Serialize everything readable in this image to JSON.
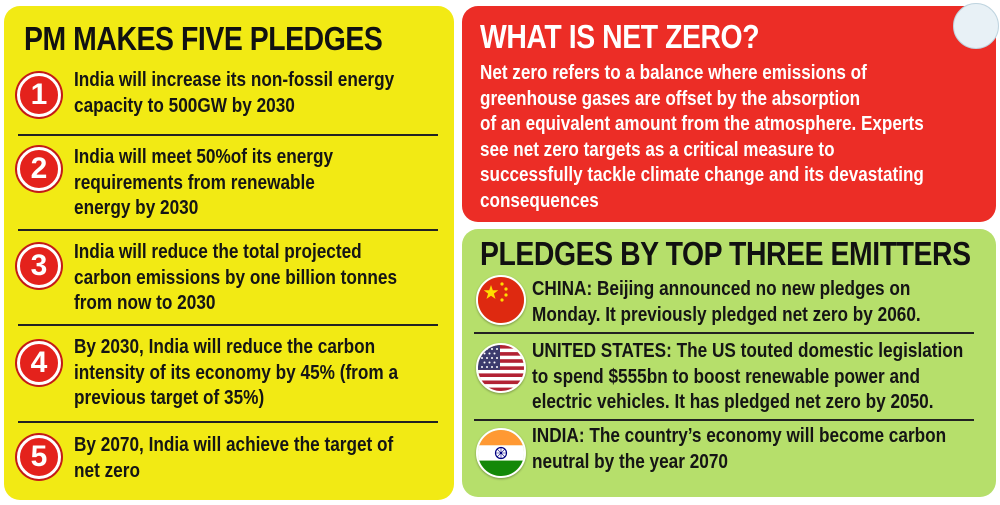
{
  "pledges": {
    "title": "PM MAKES FIVE PLEDGES",
    "items": [
      {
        "num": "1",
        "lines": [
          "India will increase its non-fossil energy",
          "capacity to 500GW by 2030"
        ]
      },
      {
        "num": "2",
        "lines": [
          "India will meet 50%of its energy",
          "requirements from renewable",
          "energy by 2030"
        ]
      },
      {
        "num": "3",
        "lines": [
          "India will reduce the total projected",
          "carbon emissions by one billion tonnes",
          "from now to 2030"
        ]
      },
      {
        "num": "4",
        "lines": [
          "By 2030, India will reduce the carbon",
          "intensity of its economy by 45% (from a",
          "previous target of 35%)"
        ]
      },
      {
        "num": "5",
        "lines": [
          "By 2070, India will achieve the target of",
          "net zero"
        ]
      }
    ]
  },
  "netzero": {
    "title": "WHAT IS NET ZERO?",
    "lines": [
      "Net zero refers to a balance where emissions of",
      "greenhouse gases are offset by the absorption",
      "of an equivalent amount from the atmosphere. Experts",
      "see net zero targets as a critical measure to",
      "successfully tackle climate change and its devastating",
      "consequences"
    ]
  },
  "emitters": {
    "title": "PLEDGES BY TOP THREE EMITTERS",
    "items": [
      {
        "flag": "china-flag-icon",
        "lines": [
          "CHINA: Beijing announced no new pledges on",
          "Monday. It previously pledged net zero by 2060."
        ]
      },
      {
        "flag": "us-flag-icon",
        "lines": [
          "UNITED STATES: The US touted domestic legislation",
          "to spend $555bn to boost renewable power and",
          "electric vehicles. It has pledged net zero by 2050."
        ]
      },
      {
        "flag": "india-flag-icon",
        "lines": [
          "INDIA: The country’s economy will become carbon",
          "neutral by the year 2070"
        ]
      }
    ]
  },
  "colors": {
    "pledges_bg": "#f2ea14",
    "netzero_bg": "#ec2d26",
    "emitters_bg": "#b6df6b",
    "badge_red": "#e4221c"
  }
}
